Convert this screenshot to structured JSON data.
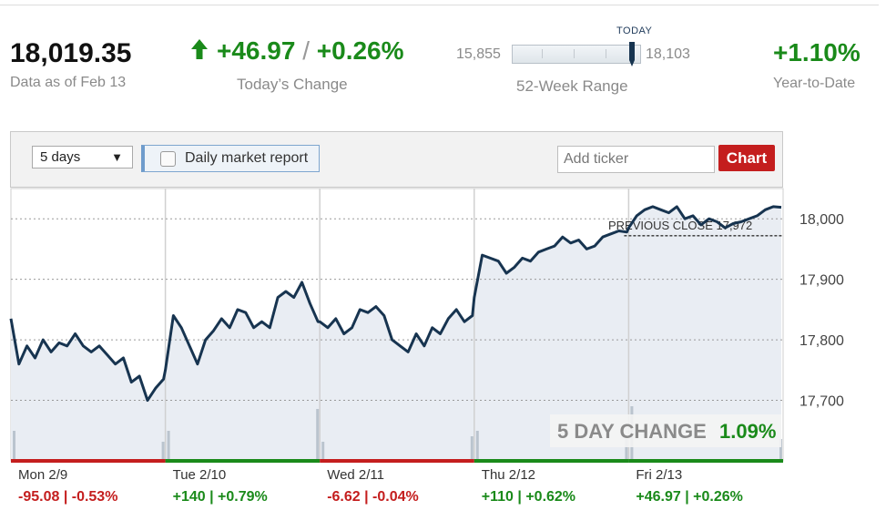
{
  "header": {
    "price": "18,019.35",
    "price_label": "Data as of Feb 13",
    "change_points": "+46.97",
    "change_sep": "/",
    "change_pct": "+0.26%",
    "change_label": "Today’s Change",
    "range_low": "15,855",
    "range_high": "18,103",
    "range_marker_label": "TODAY",
    "range_label": "52-Week Range",
    "range_position_fraction": 0.93,
    "ytd_value": "+1.10%",
    "ytd_label": "Year-to-Date"
  },
  "controls": {
    "period_selected": "5 days",
    "report_toggle_label": "Daily market report",
    "ticker_placeholder": "Add ticker",
    "chart_button_label": "Chart"
  },
  "colors": {
    "up": "#1a8a1a",
    "down": "#c41e1e",
    "line": "#173450",
    "area": "#e9edf3",
    "button": "#c41e1e"
  },
  "chart_data": {
    "type": "line",
    "y_ticks": [
      "18,000",
      "17,900",
      "17,800",
      "17,700"
    ],
    "ylim": [
      17600,
      18050
    ],
    "y_tick_values": [
      18000,
      17900,
      17800,
      17700
    ],
    "previous_close_label": "PREVIOUS CLOSE 17,972",
    "previous_close": 17972,
    "five_day_change_label": "5 DAY CHANGE",
    "five_day_change_value": "1.09%",
    "days": [
      {
        "label": "Mon 2/9",
        "change": "-95.08 | -0.53%",
        "direction": "down"
      },
      {
        "label": "Tue 2/10",
        "change": "+140 | +0.79%",
        "direction": "up"
      },
      {
        "label": "Wed 2/11",
        "change": "-6.62 | -0.04%",
        "direction": "down"
      },
      {
        "label": "Thu 2/12",
        "change": "+110 | +0.62%",
        "direction": "up"
      },
      {
        "label": "Fri 2/13",
        "change": "+46.97 | +0.26%",
        "direction": "up"
      }
    ],
    "series": [
      {
        "values_per_day": [
          [
            17835,
            17760,
            17790,
            17770,
            17800,
            17780,
            17795,
            17790,
            17810,
            17790,
            17780,
            17790,
            17775,
            17760,
            17770,
            17730,
            17740,
            17700,
            17720,
            17735
          ],
          [
            17750,
            17840,
            17820,
            17790,
            17760,
            17800,
            17815,
            17835,
            17820,
            17850,
            17845,
            17820,
            17830,
            17820,
            17870,
            17880,
            17870,
            17895,
            17860,
            17830
          ],
          [
            17830,
            17820,
            17835,
            17810,
            17820,
            17850,
            17845,
            17855,
            17840,
            17800,
            17790,
            17780,
            17810,
            17790,
            17820,
            17810,
            17835,
            17850,
            17830,
            17840
          ],
          [
            17870,
            17940,
            17935,
            17930,
            17910,
            17920,
            17935,
            17930,
            17945,
            17950,
            17955,
            17970,
            17960,
            17965,
            17950,
            17955,
            17970,
            17975,
            17980,
            17978
          ],
          [
            17985,
            18005,
            18015,
            18020,
            18015,
            18010,
            18020,
            18000,
            18005,
            17990,
            18000,
            17995,
            17985,
            17992,
            17995,
            18000,
            18005,
            18015,
            18020,
            18019
          ]
        ]
      }
    ],
    "volume_spikes": [
      0.55,
      0.35,
      0.55,
      0.95,
      0.35,
      0.45,
      0.55,
      0.4,
      1.0,
      0.4
    ]
  }
}
